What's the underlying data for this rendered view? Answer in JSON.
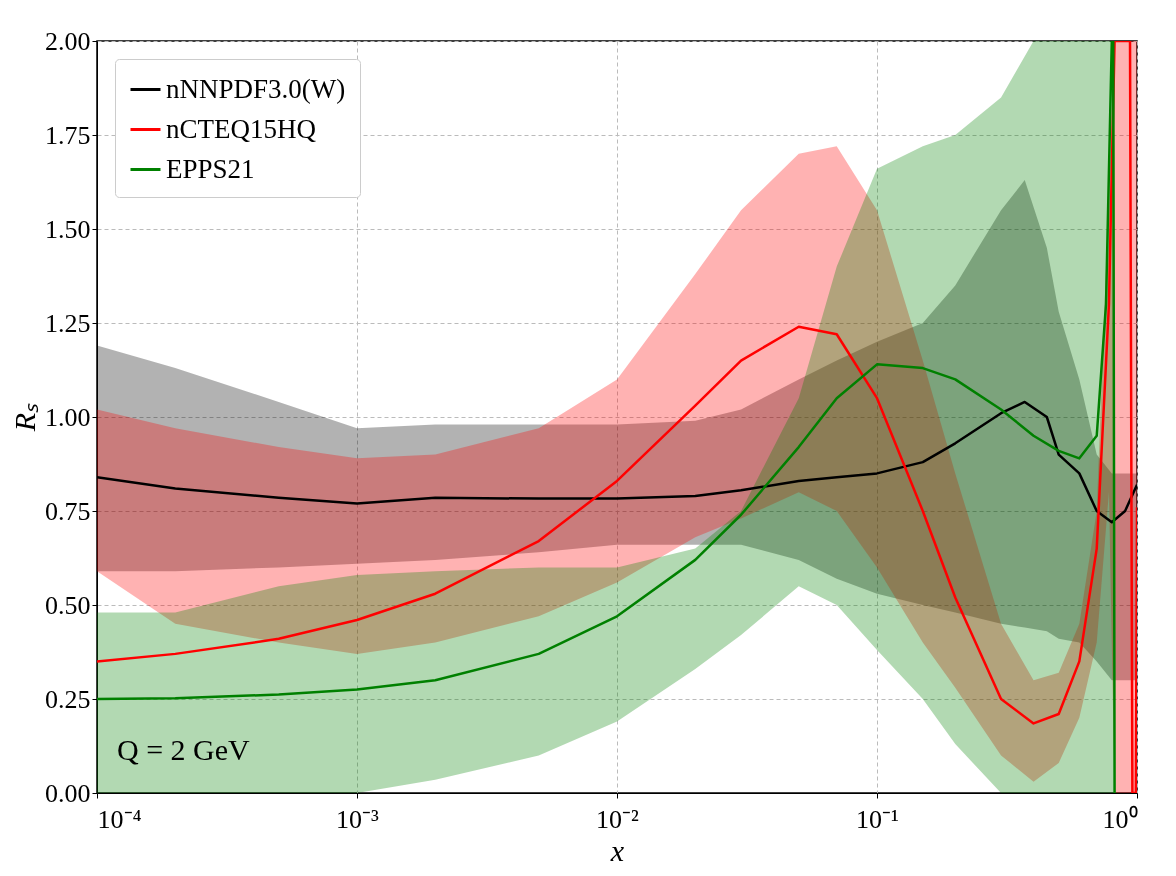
{
  "chart_data": {
    "type": "line",
    "xlabel": "x",
    "ylabel": "Rₛ",
    "log": "x",
    "grid": true,
    "legend": "top left",
    "xlim": [
      0.0001,
      1
    ],
    "xticks": [
      {
        "value": 0.0001,
        "label": "10⁻⁴"
      },
      {
        "value": 0.001,
        "label": "10⁻³"
      },
      {
        "value": 0.01,
        "label": "10⁻²"
      },
      {
        "value": 0.1,
        "label": "10⁻¹"
      },
      {
        "value": 1,
        "label": "10⁰"
      }
    ],
    "ylim": [
      0,
      2
    ],
    "yticks": [
      {
        "value": 0,
        "label": "0.00"
      },
      {
        "value": 0.25,
        "label": "0.25"
      },
      {
        "value": 0.5,
        "label": "0.50"
      },
      {
        "value": 0.75,
        "label": "0.75"
      },
      {
        "value": 1,
        "label": "1.00"
      },
      {
        "value": 1.25,
        "label": "1.25"
      },
      {
        "value": 1.5,
        "label": "1.50"
      },
      {
        "value": 1.75,
        "label": "1.75"
      },
      {
        "value": 2,
        "label": "2.00"
      }
    ],
    "annotations": [
      "Q = 2 GeV"
    ],
    "series": [
      {
        "name": "nNNPDF3.0(W)",
        "color": "#000000",
        "x": [
          0.0001,
          0.0002,
          0.0005,
          0.001,
          0.002,
          0.005,
          0.01,
          0.02,
          0.03,
          0.05,
          0.07,
          0.1,
          0.15,
          0.2,
          0.3,
          0.37,
          0.45,
          0.5,
          0.6,
          0.7,
          0.8,
          0.9,
          1.0
        ],
        "values": [
          0.84,
          0.81,
          0.785,
          0.77,
          0.785,
          0.783,
          0.783,
          0.79,
          0.805,
          0.83,
          0.84,
          0.85,
          0.88,
          0.93,
          1.01,
          1.04,
          1.0,
          0.9,
          0.85,
          0.75,
          0.72,
          0.75,
          0.82
        ],
        "upper": [
          1.19,
          1.13,
          1.04,
          0.97,
          0.98,
          0.98,
          0.98,
          0.99,
          1.02,
          1.1,
          1.15,
          1.2,
          1.25,
          1.35,
          1.55,
          1.63,
          1.45,
          1.28,
          1.1,
          0.9,
          0.85,
          0.85,
          0.85
        ],
        "lower": [
          0.59,
          0.59,
          0.6,
          0.61,
          0.62,
          0.64,
          0.66,
          0.66,
          0.66,
          0.62,
          0.57,
          0.53,
          0.5,
          0.48,
          0.45,
          0.44,
          0.43,
          0.41,
          0.4,
          0.35,
          0.3,
          0.3,
          0.3
        ]
      },
      {
        "name": "nCTEQ15HQ",
        "color": "#ff0000",
        "x": [
          0.0001,
          0.0002,
          0.0005,
          0.001,
          0.002,
          0.005,
          0.01,
          0.02,
          0.03,
          0.05,
          0.07,
          0.1,
          0.15,
          0.2,
          0.3,
          0.4,
          0.5,
          0.6,
          0.7,
          0.78,
          0.82,
          0.94,
          0.96,
          0.99,
          1.0
        ],
        "values": [
          0.35,
          0.37,
          0.41,
          0.46,
          0.53,
          0.67,
          0.83,
          1.03,
          1.15,
          1.24,
          1.22,
          1.05,
          0.75,
          0.52,
          0.25,
          0.185,
          0.21,
          0.35,
          0.65,
          1.3,
          2.0,
          2.0,
          0.0,
          0.0,
          0.76
        ],
        "upper": [
          1.02,
          0.97,
          0.92,
          0.89,
          0.9,
          0.97,
          1.1,
          1.38,
          1.55,
          1.7,
          1.72,
          1.55,
          1.15,
          0.85,
          0.45,
          0.3,
          0.32,
          0.45,
          0.75,
          1.6,
          2.0,
          2.0,
          2.0,
          2.0,
          2.0
        ],
        "lower": [
          0.59,
          0.45,
          0.4,
          0.37,
          0.4,
          0.47,
          0.56,
          0.68,
          0.73,
          0.8,
          0.75,
          0.6,
          0.4,
          0.28,
          0.1,
          0.03,
          0.08,
          0.2,
          0.4,
          0.8,
          0.0,
          0.0,
          0.0,
          0.0,
          0.0
        ]
      },
      {
        "name": "EPPS21",
        "color": "#008000",
        "x": [
          0.0001,
          0.0002,
          0.0005,
          0.001,
          0.002,
          0.005,
          0.01,
          0.02,
          0.03,
          0.05,
          0.07,
          0.1,
          0.15,
          0.2,
          0.3,
          0.4,
          0.5,
          0.6,
          0.7,
          0.76,
          0.8,
          0.81,
          0.82
        ],
        "values": [
          0.25,
          0.252,
          0.262,
          0.275,
          0.3,
          0.37,
          0.47,
          0.62,
          0.74,
          0.92,
          1.05,
          1.14,
          1.13,
          1.1,
          1.02,
          0.95,
          0.91,
          0.89,
          0.95,
          1.3,
          2.0,
          2.0,
          0.0
        ],
        "upper": [
          0.48,
          0.48,
          0.55,
          0.58,
          0.59,
          0.6,
          0.6,
          0.65,
          0.75,
          1.05,
          1.4,
          1.66,
          1.72,
          1.75,
          1.85,
          2.0,
          2.0,
          2.0,
          2.0,
          2.0,
          2.0,
          2.0,
          2.0
        ],
        "lower": [
          0.0,
          0.0,
          0.0,
          0.0,
          0.035,
          0.1,
          0.19,
          0.33,
          0.42,
          0.55,
          0.5,
          0.38,
          0.25,
          0.13,
          0.0,
          0.0,
          0.0,
          0.0,
          0.0,
          0.0,
          0.0,
          0.0,
          0.0
        ]
      }
    ]
  }
}
